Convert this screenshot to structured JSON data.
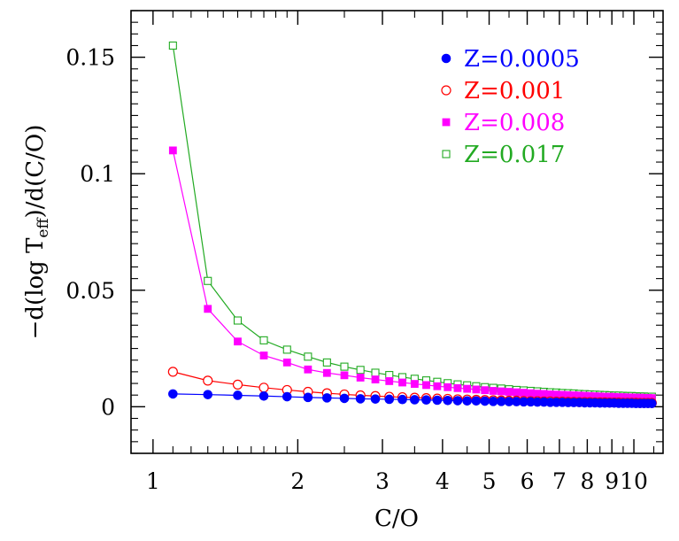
{
  "chart_data": {
    "type": "line",
    "xscale": "log",
    "xlim": [
      0.9,
      11.5
    ],
    "ylim": [
      -0.02,
      0.17
    ],
    "xlabel": "C/O",
    "ylabel": {
      "prefix": "−d(log T",
      "sub": "eff",
      "suffix": ")/d(C/O)"
    },
    "x_ticks": [
      {
        "value": 1,
        "label": "1"
      },
      {
        "value": 2,
        "label": "2"
      },
      {
        "value": 3,
        "label": "3"
      },
      {
        "value": 4,
        "label": "4"
      },
      {
        "value": 5,
        "label": "5"
      },
      {
        "value": 6,
        "label": "6"
      },
      {
        "value": 7,
        "label": "7"
      },
      {
        "value": 8,
        "label": "8"
      },
      {
        "value": 9,
        "label": "9"
      },
      {
        "value": 10,
        "label": "10"
      }
    ],
    "y_ticks": [
      {
        "value": 0,
        "label": "0"
      },
      {
        "value": 0.05,
        "label": "0.05"
      },
      {
        "value": 0.1,
        "label": "0.1"
      },
      {
        "value": 0.15,
        "label": "0.15"
      }
    ],
    "legend_position": "top-right",
    "x": [
      1.1,
      1.3,
      1.5,
      1.7,
      1.9,
      2.1,
      2.3,
      2.5,
      2.7,
      2.9,
      3.1,
      3.3,
      3.5,
      3.7,
      3.9,
      4.1,
      4.3,
      4.5,
      4.7,
      4.9,
      5.1,
      5.3,
      5.5,
      5.7,
      5.9,
      6.1,
      6.3,
      6.5,
      6.7,
      6.9,
      7.1,
      7.3,
      7.5,
      7.7,
      7.9,
      8.1,
      8.3,
      8.5,
      8.7,
      8.9,
      9.1,
      9.3,
      9.5,
      9.7,
      9.9,
      10.1,
      10.3,
      10.5,
      10.7,
      10.9
    ],
    "series": [
      {
        "name": "Z=0.0005",
        "color": "#0000ff",
        "marker": "filled-circle",
        "values": [
          0.0055,
          0.0052,
          0.0049,
          0.0046,
          0.0043,
          0.004,
          0.0038,
          0.0036,
          0.0034,
          0.0033,
          0.0032,
          0.0031,
          0.003,
          0.0029,
          0.0028,
          0.0027,
          0.0026,
          0.0025,
          0.0025,
          0.0024,
          0.0023,
          0.0023,
          0.0022,
          0.0022,
          0.0021,
          0.0021,
          0.002,
          0.002,
          0.0019,
          0.0019,
          0.0019,
          0.0018,
          0.0018,
          0.0018,
          0.0017,
          0.0017,
          0.0017,
          0.0016,
          0.0016,
          0.0016,
          0.0016,
          0.0015,
          0.0015,
          0.0015,
          0.0015,
          0.0014,
          0.0014,
          0.0014,
          0.0014,
          0.0014
        ]
      },
      {
        "name": "Z=0.001",
        "color": "#ff0000",
        "marker": "open-circle",
        "values": [
          0.015,
          0.0112,
          0.0095,
          0.0082,
          0.0072,
          0.0064,
          0.0058,
          0.0053,
          0.0049,
          0.0046,
          0.0043,
          0.0041,
          0.0039,
          0.0037,
          0.0035,
          0.0034,
          0.0032,
          0.0031,
          0.003,
          0.0029,
          0.0028,
          0.0027,
          0.0026,
          0.0026,
          0.0025,
          0.0024,
          0.0024,
          0.0023,
          0.0023,
          0.0022,
          0.0022,
          0.0021,
          0.0021,
          0.002,
          0.002,
          0.002,
          0.0019,
          0.0019,
          0.0019,
          0.0018,
          0.0018,
          0.0018,
          0.0017,
          0.0017,
          0.0017,
          0.0017,
          0.0016,
          0.0016,
          0.0016,
          0.0016
        ]
      },
      {
        "name": "Z=0.008",
        "color": "#ff00ff",
        "marker": "filled-square",
        "values": [
          0.11,
          0.042,
          0.028,
          0.022,
          0.019,
          0.016,
          0.0145,
          0.0135,
          0.0125,
          0.0117,
          0.011,
          0.0104,
          0.0098,
          0.0093,
          0.0088,
          0.0084,
          0.008,
          0.0077,
          0.0074,
          0.0071,
          0.0068,
          0.0066,
          0.0064,
          0.0062,
          0.006,
          0.0058,
          0.0056,
          0.0055,
          0.0053,
          0.0052,
          0.0051,
          0.005,
          0.0049,
          0.0048,
          0.0047,
          0.0046,
          0.0045,
          0.0044,
          0.0043,
          0.0043,
          0.0042,
          0.0041,
          0.0041,
          0.004,
          0.004,
          0.0039,
          0.0039,
          0.0038,
          0.0038,
          0.0037
        ]
      },
      {
        "name": "Z=0.017",
        "color": "#22aa22",
        "marker": "open-square",
        "values": [
          0.155,
          0.054,
          0.037,
          0.0285,
          0.0245,
          0.0215,
          0.019,
          0.0172,
          0.0158,
          0.0146,
          0.0136,
          0.0127,
          0.012,
          0.0113,
          0.0107,
          0.0101,
          0.0096,
          0.0092,
          0.0088,
          0.0084,
          0.0081,
          0.0078,
          0.0075,
          0.0072,
          0.007,
          0.0068,
          0.0066,
          0.0064,
          0.0062,
          0.0061,
          0.0059,
          0.0058,
          0.0057,
          0.0055,
          0.0054,
          0.0053,
          0.0052,
          0.0051,
          0.005,
          0.0049,
          0.0048,
          0.0048,
          0.0047,
          0.0046,
          0.0046,
          0.0045,
          0.0044,
          0.0044,
          0.0043,
          0.0043
        ]
      }
    ]
  }
}
